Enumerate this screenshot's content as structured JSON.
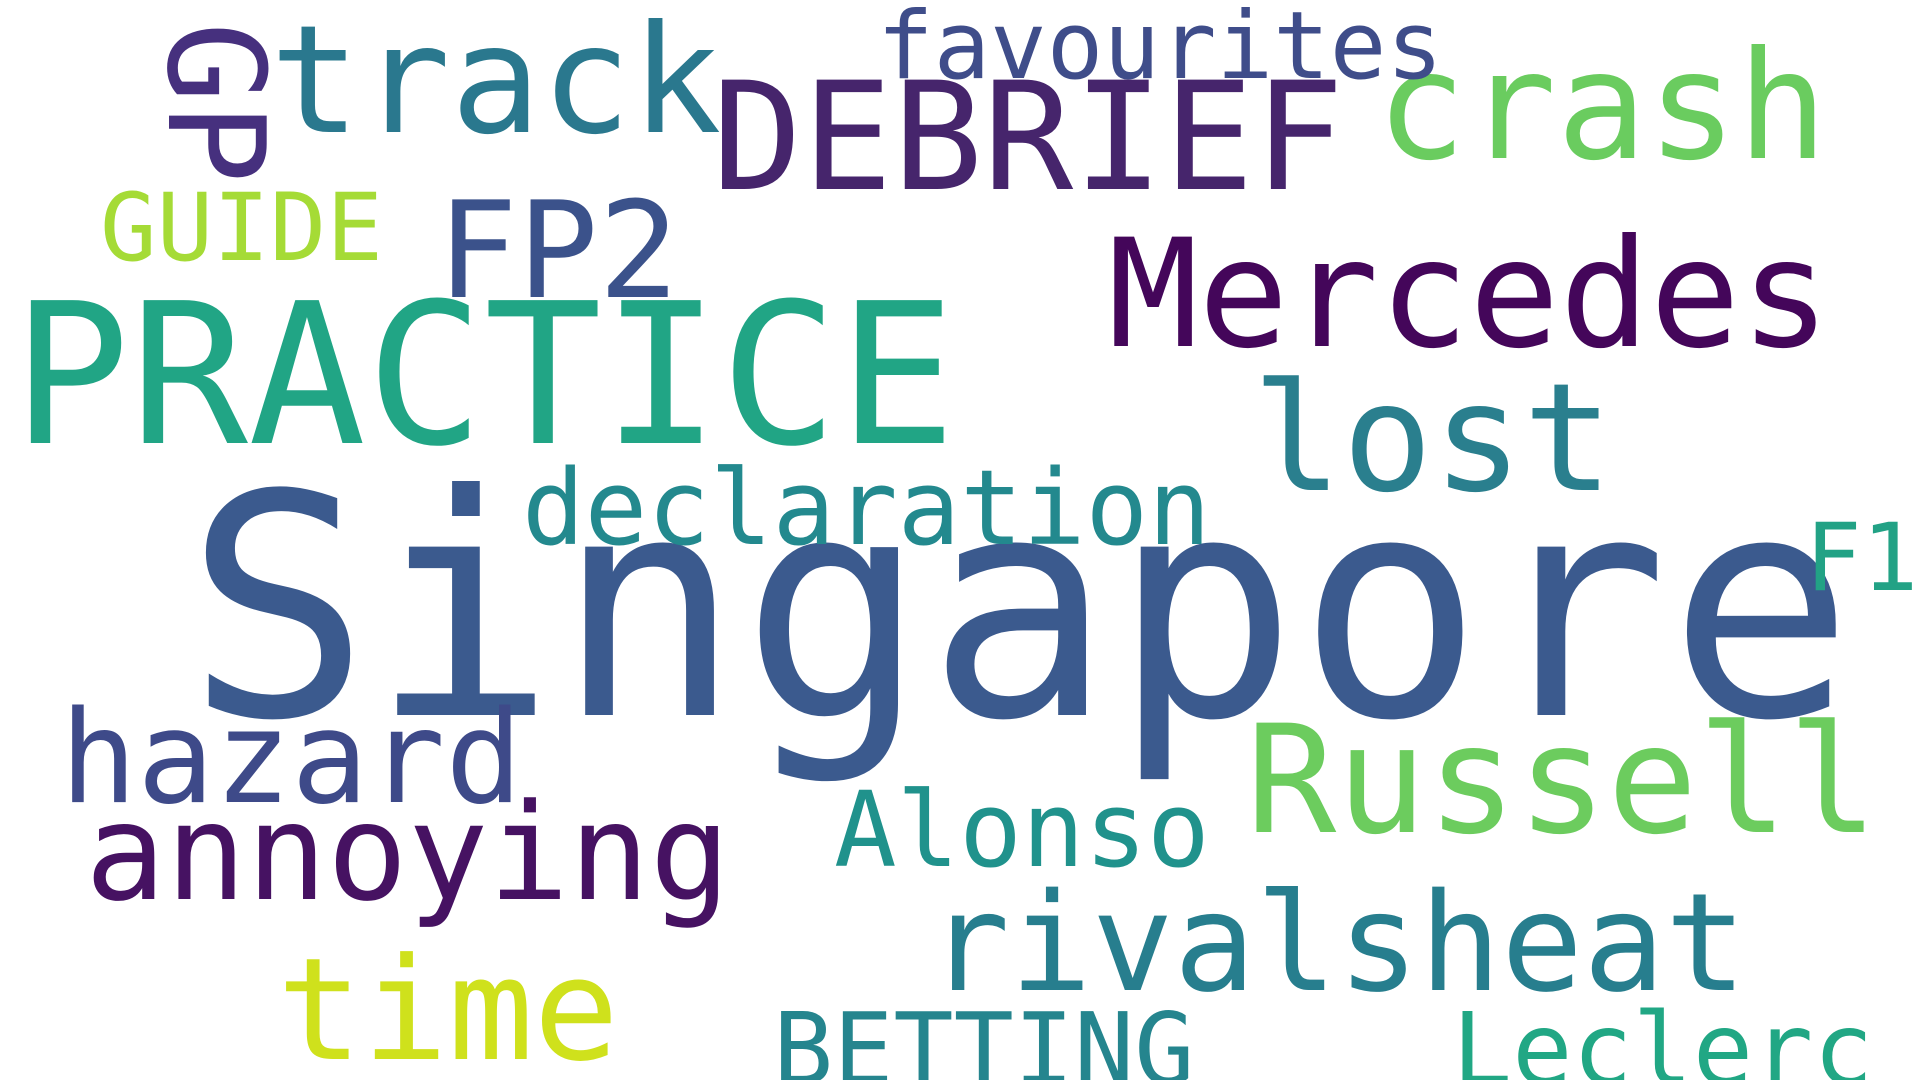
{
  "words": [
    {
      "text": "Singapore",
      "color": "#3b5a8e"
    },
    {
      "text": "PRACTICE",
      "color": "#21a585"
    },
    {
      "text": "DEBRIEF",
      "color": "#46256c"
    },
    {
      "text": "Mercedes",
      "color": "#44065a"
    },
    {
      "text": "crash",
      "color": "#6acc5f"
    },
    {
      "text": "Russell",
      "color": "#6ccc5e"
    },
    {
      "text": "track",
      "color": "#2a788e"
    },
    {
      "text": "lost",
      "color": "#2a7f8e"
    },
    {
      "text": "rivalsheat",
      "color": "#277e8e"
    },
    {
      "text": "annoying",
      "color": "#461262"
    },
    {
      "text": "hazard",
      "color": "#3e4a89"
    },
    {
      "text": "time",
      "color": "#cfe11c"
    },
    {
      "text": "FP2",
      "color": "#3b528b"
    },
    {
      "text": "declaration",
      "color": "#23898e"
    },
    {
      "text": "Alonso",
      "color": "#20928c"
    },
    {
      "text": "Leclerc",
      "color": "#21a784"
    },
    {
      "text": "BETTING",
      "color": "#25858e"
    },
    {
      "text": "favourites",
      "color": "#3f4d8a"
    },
    {
      "text": "GUIDE",
      "color": "#a5db36"
    },
    {
      "text": "F1",
      "color": "#22a285"
    },
    {
      "text": "GP",
      "color": "#46307e"
    }
  ]
}
